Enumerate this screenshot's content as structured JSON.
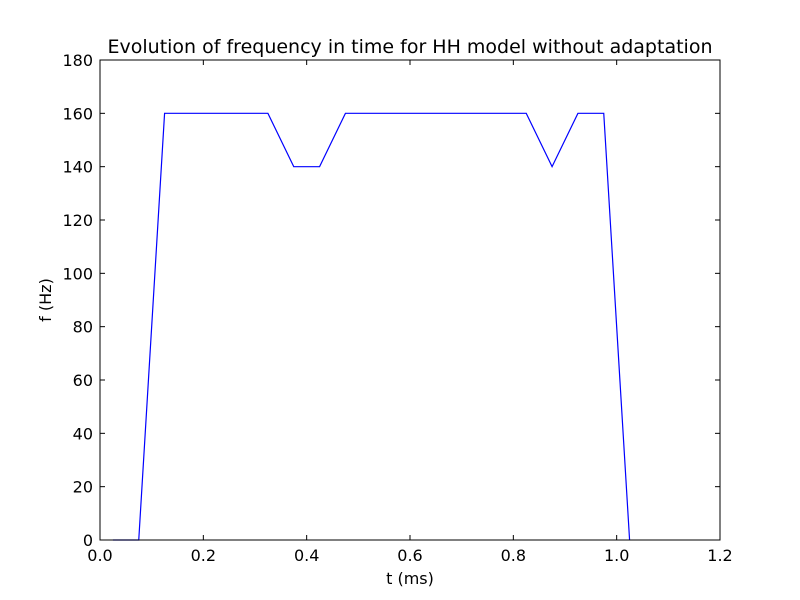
{
  "chart_data": {
    "type": "line",
    "title": "Evolution of frequency in time for HH model without adaptation",
    "xlabel": "t (ms)",
    "ylabel": "f (Hz)",
    "xlim": [
      0.0,
      1.2
    ],
    "ylim": [
      0,
      180
    ],
    "xticks": [
      "0.0",
      "0.2",
      "0.4",
      "0.6",
      "0.8",
      "1.0",
      "1.2"
    ],
    "yticks": [
      "0",
      "20",
      "40",
      "60",
      "80",
      "100",
      "120",
      "140",
      "160",
      "180"
    ],
    "grid": false,
    "legend": "none",
    "series": [
      {
        "color": "#0000ff",
        "x": [
          0.025,
          0.075,
          0.125,
          0.175,
          0.225,
          0.275,
          0.325,
          0.375,
          0.425,
          0.475,
          0.525,
          0.575,
          0.625,
          0.675,
          0.725,
          0.775,
          0.825,
          0.875,
          0.925,
          0.975,
          1.025
        ],
        "y": [
          0,
          0,
          160,
          160,
          160,
          160,
          160,
          140,
          140,
          160,
          160,
          160,
          160,
          160,
          160,
          160,
          160,
          140,
          160,
          160,
          0
        ]
      }
    ]
  }
}
